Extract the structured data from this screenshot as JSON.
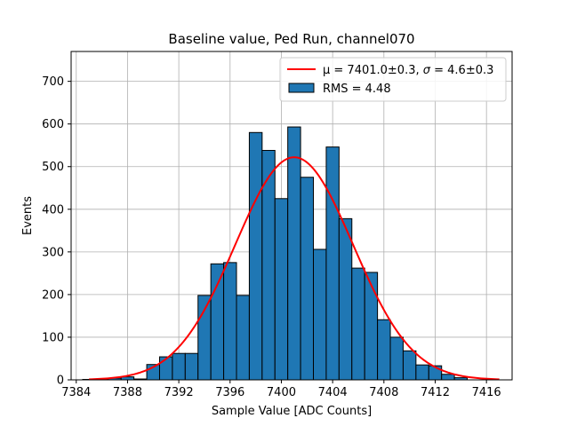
{
  "chart_data": {
    "type": "bar",
    "subtype": "histogram",
    "title": "Baseline value, Ped Run, channel070",
    "xlabel": "Sample Value [ADC Counts]",
    "ylabel": "Events",
    "xlim": [
      7383.6,
      7418.0
    ],
    "ylim": [
      0,
      770
    ],
    "xticks": [
      7384,
      7388,
      7392,
      7396,
      7400,
      7404,
      7408,
      7412,
      7416
    ],
    "yticks": [
      0,
      100,
      200,
      300,
      400,
      500,
      600,
      700
    ],
    "grid": true,
    "legend_position": "top-right",
    "histogram": {
      "name": "RMS = 4.48",
      "color": "#1f77b4",
      "edge_color": "#000000",
      "bin_edges": [
        7384.5,
        7385.5,
        7386.5,
        7387.5,
        7388.5,
        7389.5,
        7390.5,
        7391.5,
        7392.5,
        7393.5,
        7394.5,
        7395.5,
        7396.5,
        7397.5,
        7398.5,
        7399.5,
        7400.5,
        7401.5,
        7402.5,
        7403.5,
        7404.5,
        7405.5,
        7406.5,
        7407.5,
        7408.5,
        7409.5,
        7410.5,
        7411.5,
        7412.5,
        7413.5,
        7414.5
      ],
      "counts": [
        1,
        2,
        4,
        7,
        2,
        36,
        54,
        62,
        62,
        198,
        272,
        275,
        198,
        580,
        538,
        425,
        593,
        475,
        306,
        546,
        378,
        262,
        252,
        141,
        100,
        68,
        35,
        33,
        13,
        5
      ]
    },
    "fit": {
      "name_prefix": "μ = 7401.0±0.3, ",
      "name_sigma": "σ",
      "name_suffix": " = 4.6±0.3",
      "type": "gaussian",
      "mu": 7401.0,
      "sigma": 4.6,
      "amplitude": 522,
      "x_range": [
        7385,
        7417
      ],
      "color": "#ff0000"
    }
  }
}
